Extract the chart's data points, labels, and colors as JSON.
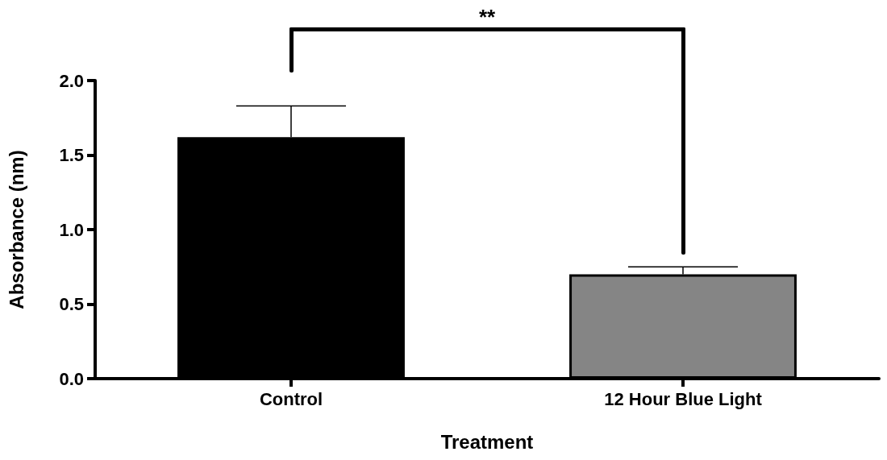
{
  "chart_data": {
    "type": "bar",
    "xlabel": "Treatment",
    "ylabel": "Absorbance (nm)",
    "categories": [
      "Control",
      "12 Hour Blue Light"
    ],
    "values": [
      1.62,
      0.7
    ],
    "colors": [
      "#000000",
      "#858585"
    ],
    "errors": [
      [
        1.62,
        1.83
      ],
      [
        0.7,
        0.75
      ]
    ],
    "ylim": [
      0,
      2
    ],
    "yticks": [
      {
        "value": 0,
        "label": "0.0"
      },
      {
        "value": 0.5,
        "label": "0.5"
      },
      {
        "value": 1,
        "label": "1.0"
      },
      {
        "value": 1.5,
        "label": "1.5"
      },
      {
        "value": 2,
        "label": "2.0"
      }
    ],
    "grid": false,
    "annotations": [
      "**"
    ]
  }
}
